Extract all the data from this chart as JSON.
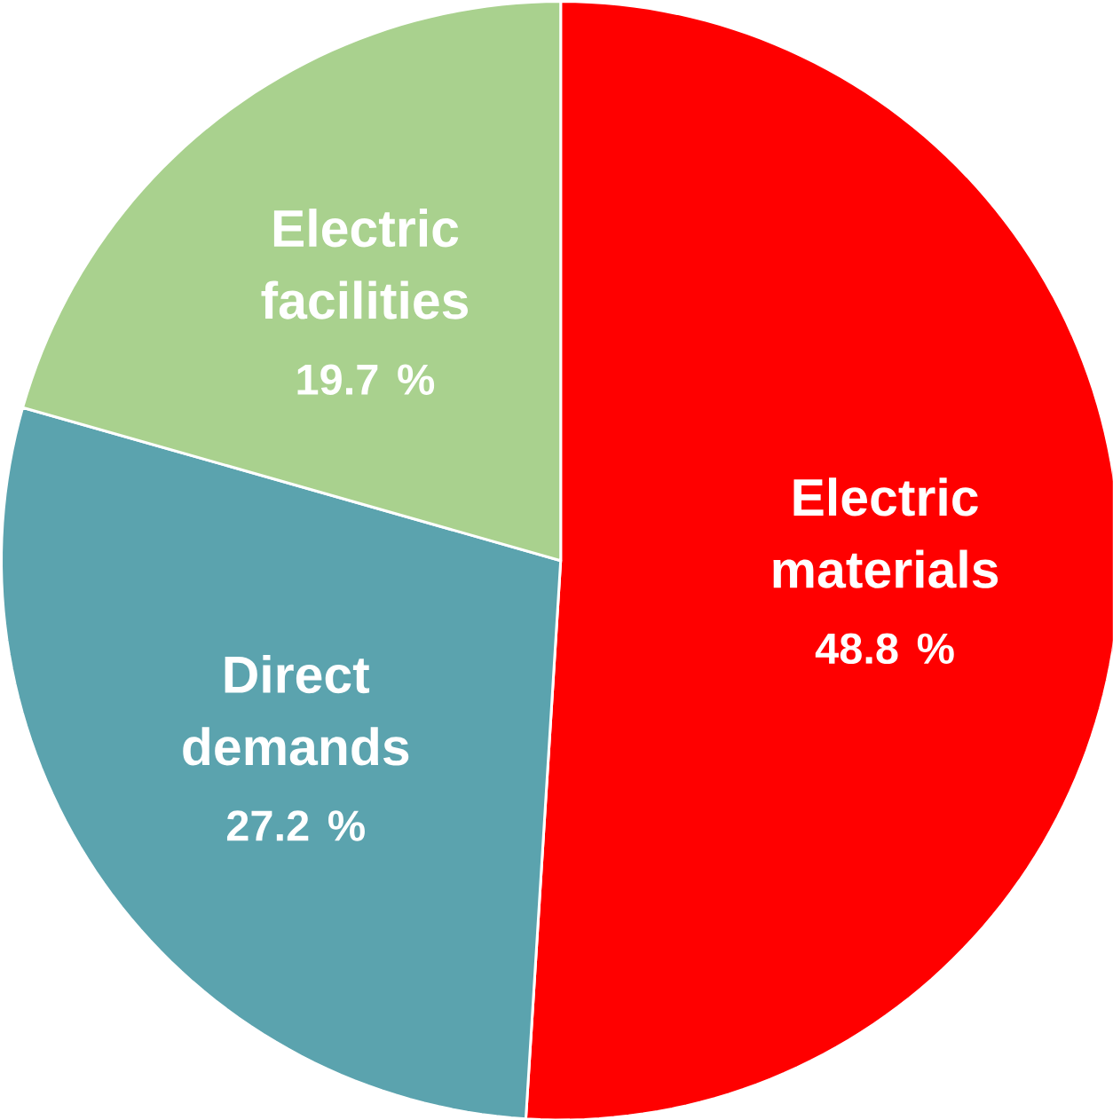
{
  "chart_data": {
    "type": "pie",
    "categories": [
      "Electric materials",
      "Direct demands",
      "Electric facilities"
    ],
    "values": [
      48.8,
      27.2,
      19.7
    ],
    "colors": [
      "#ff0000",
      "#5ba3ae",
      "#a9d18e"
    ],
    "value_labels": [
      "48.8 %",
      "27.2 %",
      "19.7 %"
    ]
  }
}
